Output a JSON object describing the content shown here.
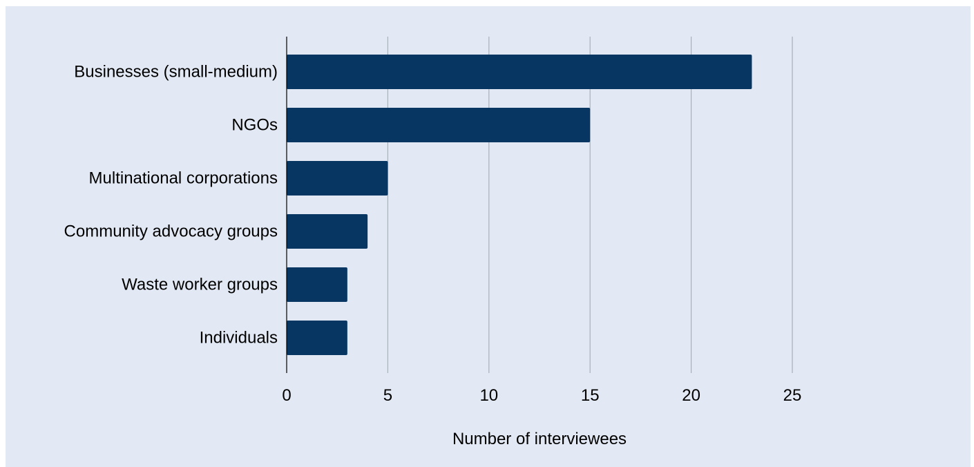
{
  "chart_data": {
    "type": "bar",
    "orientation": "horizontal",
    "categories": [
      "Businesses (small-medium)",
      "NGOs",
      "Multinational corporations",
      "Community advocacy groups",
      "Waste worker groups",
      "Individuals"
    ],
    "values": [
      23,
      15,
      5,
      4,
      3,
      3
    ],
    "title": "",
    "xlabel": "Number of interviewees",
    "ylabel": "",
    "xlim": [
      0,
      25
    ],
    "xticks": [
      "0",
      "5",
      "10",
      "15",
      "20",
      "25"
    ],
    "grid": "vertical",
    "legend": "none",
    "colors": {
      "bar": "#083662",
      "background": "#e2e9f4",
      "grid": "#a9b0ba",
      "axis": "#000000"
    }
  }
}
